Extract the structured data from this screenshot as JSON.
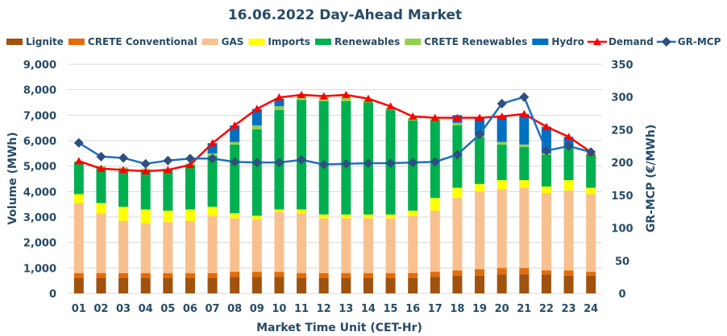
{
  "chart_data": {
    "type": "bar",
    "stacked": true,
    "title": "16.06.2022  Day-Ahead Market",
    "xlabel": "Market Time Unit (CET-Hr)",
    "ylabel": "Volume (MWh)",
    "y2label": "GR-MCP (€/MWh)",
    "ylim": [
      0,
      9000
    ],
    "y2lim": [
      0,
      350
    ],
    "yticks": [
      "0",
      "1,000",
      "2,000",
      "3,000",
      "4,000",
      "5,000",
      "6,000",
      "7,000",
      "8,000",
      "9,000"
    ],
    "y2ticks": [
      "0",
      "50",
      "100",
      "150",
      "200",
      "250",
      "300",
      "350"
    ],
    "grid": true,
    "legend_position": "top",
    "categories": [
      "01",
      "02",
      "03",
      "04",
      "05",
      "06",
      "07",
      "08",
      "09",
      "10",
      "11",
      "12",
      "13",
      "14",
      "15",
      "16",
      "17",
      "18",
      "19",
      "20",
      "21",
      "22",
      "23",
      "24"
    ],
    "series": [
      {
        "name": "Lignite",
        "kind": "bar",
        "color": "#a0520f",
        "values": [
          600,
          600,
          600,
          600,
          600,
          600,
          600,
          650,
          650,
          650,
          600,
          600,
          600,
          600,
          600,
          600,
          650,
          700,
          700,
          750,
          750,
          750,
          700,
          700
        ]
      },
      {
        "name": "CRETE Conventional",
        "kind": "bar",
        "color": "#e36c09",
        "values": [
          200,
          200,
          200,
          200,
          200,
          200,
          200,
          200,
          200,
          200,
          200,
          200,
          200,
          200,
          200,
          200,
          200,
          200,
          250,
          250,
          250,
          150,
          200,
          150
        ]
      },
      {
        "name": "GAS",
        "kind": "bar",
        "color": "#f9c08f",
        "values": [
          2750,
          2350,
          2050,
          1950,
          2000,
          2050,
          2250,
          2100,
          2050,
          2350,
          2350,
          2150,
          2150,
          2150,
          2150,
          2250,
          2400,
          2850,
          3050,
          3100,
          3150,
          3050,
          3150,
          3050
        ]
      },
      {
        "name": "Imports",
        "kind": "bar",
        "color": "#ffff00",
        "values": [
          350,
          400,
          550,
          550,
          450,
          450,
          350,
          200,
          150,
          100,
          150,
          150,
          150,
          150,
          150,
          200,
          500,
          400,
          300,
          350,
          300,
          250,
          400,
          250
        ]
      },
      {
        "name": "Renewables",
        "kind": "bar",
        "color": "#00b050",
        "values": [
          1250,
          1400,
          1500,
          1550,
          1600,
          1750,
          2000,
          2700,
          3400,
          3900,
          4300,
          4450,
          4450,
          4400,
          4100,
          3550,
          3050,
          2450,
          1850,
          1400,
          1300,
          1250,
          1300,
          1300
        ]
      },
      {
        "name": "CRETE Renewables",
        "kind": "bar",
        "color": "#92d050",
        "values": [
          50,
          50,
          50,
          50,
          50,
          50,
          100,
          100,
          150,
          150,
          150,
          150,
          200,
          100,
          100,
          100,
          100,
          100,
          50,
          100,
          100,
          50,
          50,
          50
        ]
      },
      {
        "name": "Hydro",
        "kind": "bar",
        "color": "#0070c0",
        "values": [
          0,
          0,
          0,
          0,
          0,
          0,
          400,
          650,
          650,
          300,
          0,
          0,
          0,
          0,
          0,
          0,
          0,
          300,
          700,
          1000,
          1200,
          1050,
          350,
          0
        ]
      },
      {
        "name": "Demand",
        "kind": "line",
        "axis": "left",
        "color": "#ff0000",
        "values": [
          5200,
          4900,
          4850,
          4800,
          4850,
          5050,
          5900,
          6600,
          7250,
          7700,
          7800,
          7750,
          7800,
          7650,
          7350,
          6950,
          6900,
          6900,
          6900,
          6950,
          7050,
          6550,
          6150,
          5550
        ]
      },
      {
        "name": "GR-MCP",
        "kind": "line",
        "axis": "right",
        "color": "#1f6fbf",
        "marker_color": "#2e4f7f",
        "values": [
          230,
          209,
          207,
          198,
          203,
          206,
          206,
          201,
          200,
          200,
          204,
          197,
          198,
          199,
          199,
          200,
          201,
          212,
          243,
          290,
          300,
          218,
          225,
          216
        ]
      }
    ]
  }
}
